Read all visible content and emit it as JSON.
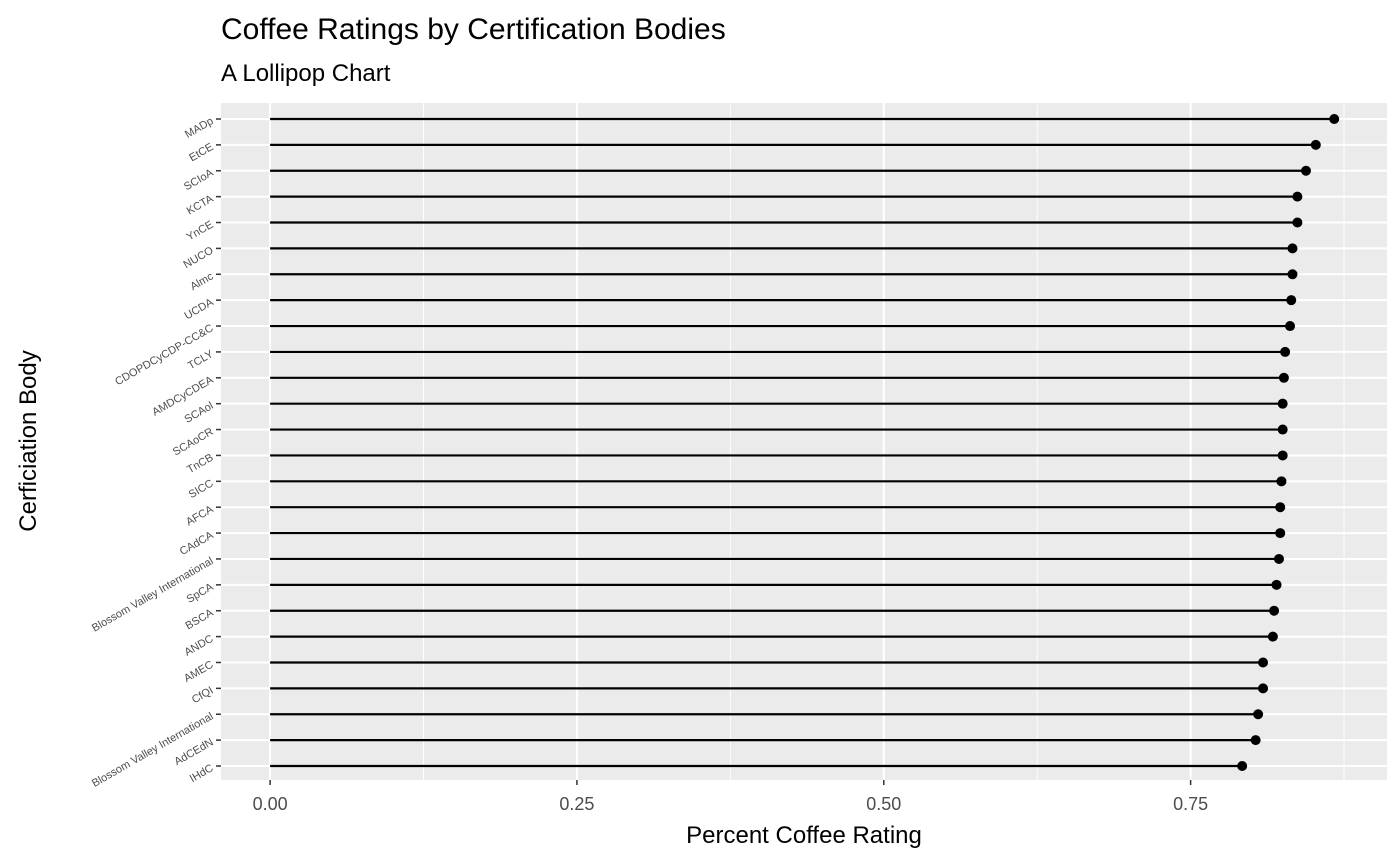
{
  "chart_data": {
    "type": "lollipop",
    "title": "Coffee Ratings by Certification Bodies",
    "subtitle": "A Lollipop Chart",
    "xlabel": "Percent Coffee Rating",
    "ylabel": "Cerficiation Body",
    "xlim": [
      -0.04,
      0.91
    ],
    "xticks": [
      0.0,
      0.25,
      0.5,
      0.75
    ],
    "xtick_labels": [
      "0.00",
      "0.25",
      "0.50",
      "0.75"
    ],
    "grid": true,
    "colors": {
      "panel": "#ebebeb",
      "grid": "#ffffff",
      "mark": "#000000"
    },
    "categories": [
      "MADp",
      "EtCE",
      "SCIoA",
      "KCTA",
      "YnCE",
      "NUCO",
      "Almc",
      "UCDA",
      "CDOPDCyCDP-CC&C",
      "TCLY",
      "AMDCyCDEA",
      "SCAol",
      "SCAoCR",
      "TnCB",
      "SICC",
      "AFCA",
      "CAdCA",
      "Blossom Valley International",
      "SpCA",
      "BSCA",
      "ANDC",
      "AMEC",
      "CfQI",
      "Blossom Valley International",
      "AdCEdN",
      "IHdC"
    ],
    "values": [
      0.867,
      0.852,
      0.844,
      0.837,
      0.837,
      0.833,
      0.833,
      0.832,
      0.831,
      0.827,
      0.826,
      0.825,
      0.825,
      0.825,
      0.824,
      0.823,
      0.823,
      0.822,
      0.82,
      0.818,
      0.817,
      0.809,
      0.809,
      0.805,
      0.803,
      0.792
    ]
  }
}
